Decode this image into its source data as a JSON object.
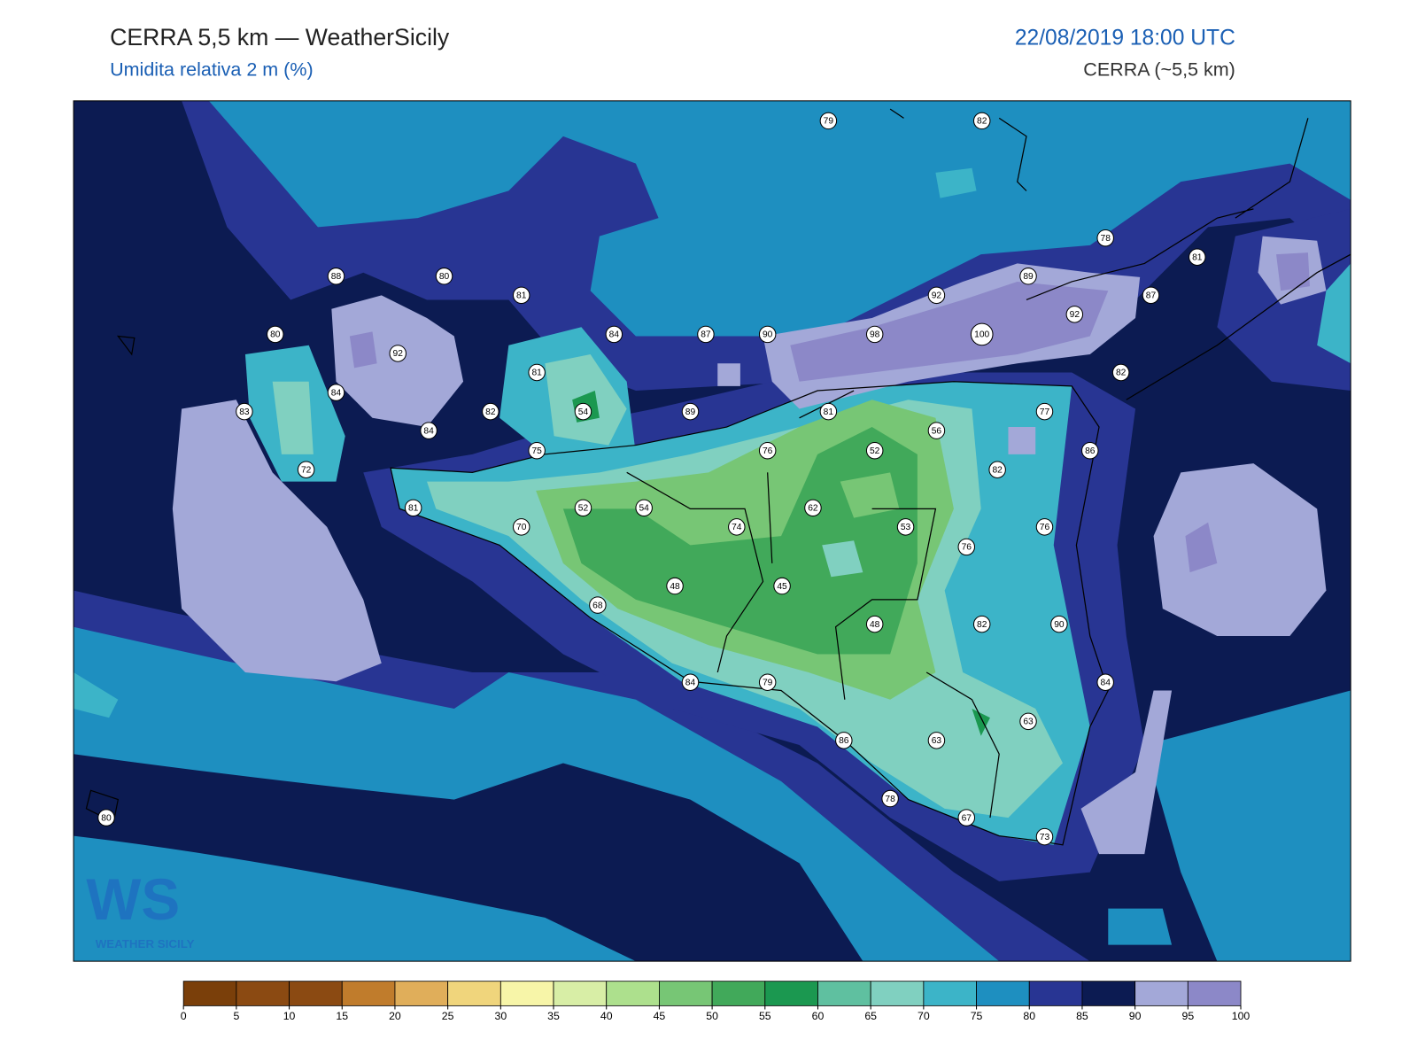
{
  "header": {
    "title": "CERRA 5,5 km — WeatherSicily",
    "subtitle": "Umidita relativa 2 m (%)",
    "datetime": "22/08/2019 18:00 UTC",
    "model": "CERRA (~5,5 km)"
  },
  "stations": [
    79,
    82,
    78,
    81,
    88,
    80,
    81,
    89,
    92,
    87,
    92,
    80,
    84,
    87,
    90,
    98,
    100,
    92,
    81,
    82,
    84,
    83,
    54,
    82,
    89,
    81,
    77,
    84,
    56,
    75,
    76,
    52,
    86,
    72,
    82,
    81,
    52,
    54,
    62,
    70,
    74,
    53,
    76,
    76,
    48,
    45,
    68,
    48,
    82,
    90,
    84,
    79,
    84,
    63,
    86,
    63,
    78,
    80,
    67,
    73
  ],
  "colorbar": {
    "ticks": [
      0,
      5,
      10,
      15,
      20,
      25,
      30,
      35,
      40,
      45,
      50,
      55,
      60,
      65,
      70,
      75,
      80,
      85,
      90,
      95,
      100
    ],
    "colors": [
      "#7a3f0a",
      "#8b4a12",
      "#8b4a12",
      "#c07c2c",
      "#e0ae5a",
      "#f0d57c",
      "#f7f5a8",
      "#d8eea6",
      "#ade08d",
      "#77c675",
      "#41a95a",
      "#1b9850",
      "#5fc0a0",
      "#80d0c0",
      "#3cb4c8",
      "#1e8fc0",
      "#283593",
      "#0c1b52",
      "#a3a8d8",
      "#8c88c8"
    ]
  },
  "logo": {
    "mark": "WS",
    "text": "WEATHER SICILY"
  }
}
